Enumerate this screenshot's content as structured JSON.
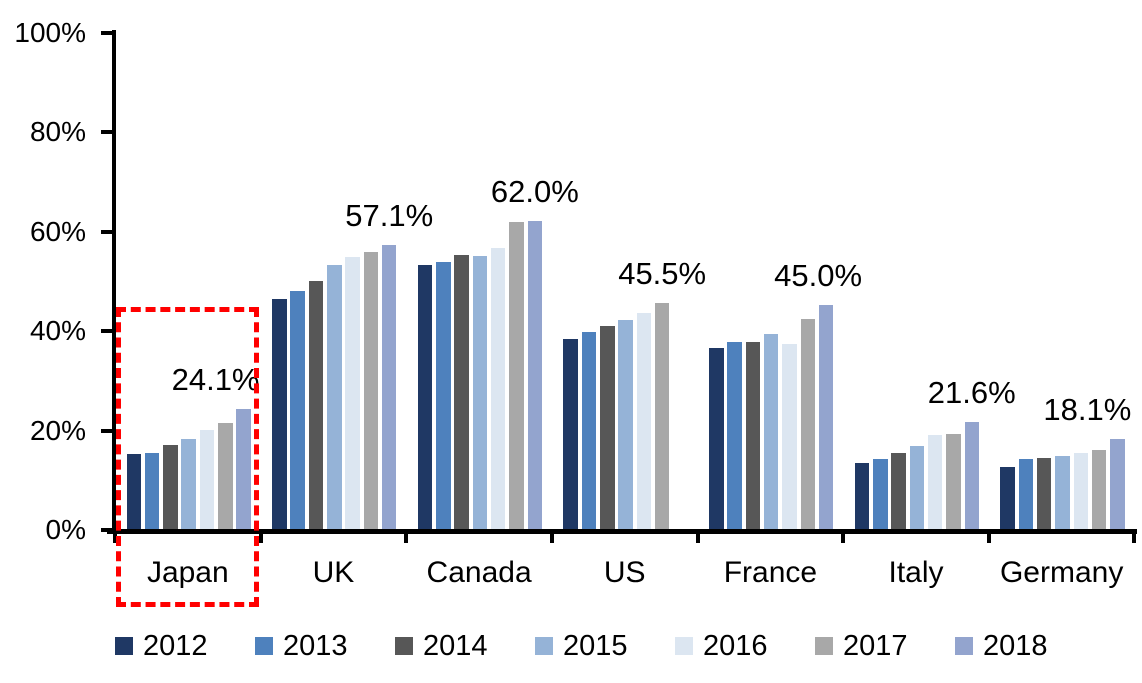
{
  "chart_data": {
    "type": "bar",
    "title": "",
    "subtitle": "",
    "xlabel": "",
    "ylabel": "",
    "categories": [
      "Japan",
      "UK",
      "Canada",
      "US",
      "France",
      "Italy",
      "Germany"
    ],
    "series": [
      {
        "name": "2012",
        "color": "#1F3864",
        "values": [
          15.1,
          46.3,
          53.1,
          38.2,
          36.4,
          13.3,
          12.5
        ]
      },
      {
        "name": "2013",
        "color": "#4E81BD",
        "values": [
          15.3,
          47.8,
          53.7,
          39.7,
          37.6,
          14.1,
          14.0
        ]
      },
      {
        "name": "2014",
        "color": "#575757",
        "values": [
          16.9,
          49.9,
          55.2,
          40.8,
          37.6,
          15.3,
          14.3
        ]
      },
      {
        "name": "2015",
        "color": "#95B3D7",
        "values": [
          18.2,
          53.2,
          55.0,
          42.0,
          39.3,
          16.8,
          14.7
        ]
      },
      {
        "name": "2016",
        "color": "#DCE6F1",
        "values": [
          20.0,
          54.7,
          56.5,
          43.4,
          37.2,
          19.0,
          15.3
        ]
      },
      {
        "name": "2017",
        "color": "#A8A8A8",
        "values": [
          21.3,
          55.8,
          61.8,
          45.5,
          42.2,
          19.2,
          15.8
        ]
      },
      {
        "name": "2018",
        "color": "#93A4CE",
        "values": [
          24.1,
          57.1,
          62.0,
          null,
          45.0,
          21.6,
          18.1
        ]
      }
    ],
    "data_labels": [
      "24.1%",
      "57.1%",
      "62.0%",
      "45.5%",
      "45.0%",
      "21.6%",
      "18.1%"
    ],
    "ylim": [
      0,
      100
    ],
    "yticks": [
      {
        "value": 0,
        "label": "0%"
      },
      {
        "value": 20,
        "label": "20%"
      },
      {
        "value": 40,
        "label": "40%"
      },
      {
        "value": 60,
        "label": "60%"
      },
      {
        "value": 80,
        "label": "80%"
      },
      {
        "value": 100,
        "label": "100%"
      }
    ],
    "grid": false,
    "legend_position": "bottom",
    "legend": [
      "2012",
      "2013",
      "2014",
      "2015",
      "2016",
      "2017",
      "2018"
    ],
    "highlight": {
      "category": "Japan",
      "style": "dashed-box",
      "color": "#FF0000"
    }
  }
}
